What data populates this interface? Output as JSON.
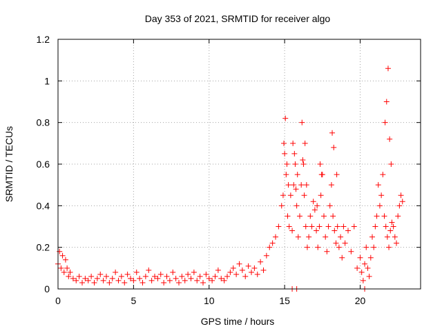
{
  "chart_data": {
    "type": "scatter",
    "title": "Day 353 of 2021, SRMTID for receiver algo",
    "xlabel": "GPS time / hours",
    "ylabel": "SRMTID / TECUs",
    "xlim": [
      0,
      24
    ],
    "ylim": [
      0,
      1.2
    ],
    "xticks": [
      0,
      5,
      10,
      15,
      20
    ],
    "yticks": [
      0,
      0.2,
      0.4,
      0.6,
      0.8,
      1,
      1.2
    ],
    "xtick_labels": [
      "0",
      "5",
      "10",
      "15",
      "20"
    ],
    "ytick_labels": [
      "0",
      "0.2",
      "0.4",
      "0.6",
      "0.8",
      "1",
      "1.2"
    ],
    "grid": true,
    "marker": "+",
    "series": [
      {
        "name": "SRMTID",
        "color": "#ff0000",
        "x": [
          0.0,
          0.1,
          0.2,
          0.3,
          0.4,
          0.5,
          0.6,
          0.7,
          0.8,
          1.0,
          1.2,
          1.4,
          1.6,
          1.8,
          2.0,
          2.2,
          2.4,
          2.6,
          2.8,
          3.0,
          3.2,
          3.4,
          3.6,
          3.8,
          4.0,
          4.2,
          4.4,
          4.6,
          4.8,
          5.0,
          5.2,
          5.4,
          5.6,
          5.8,
          6.0,
          6.2,
          6.4,
          6.6,
          6.8,
          7.0,
          7.2,
          7.4,
          7.6,
          7.8,
          8.0,
          8.2,
          8.4,
          8.6,
          8.8,
          9.0,
          9.2,
          9.4,
          9.6,
          9.8,
          10.0,
          10.2,
          10.4,
          10.6,
          10.8,
          11.0,
          11.2,
          11.4,
          11.6,
          11.8,
          12.0,
          12.2,
          12.4,
          12.6,
          12.8,
          13.0,
          13.2,
          13.4,
          13.6,
          13.8,
          14.0,
          14.2,
          14.4,
          14.6,
          14.8,
          14.9,
          15.0,
          15.1,
          15.2,
          15.3,
          15.4,
          15.5,
          15.6,
          15.7,
          15.8,
          15.9,
          16.0,
          16.1,
          16.2,
          16.3,
          16.4,
          16.5,
          16.6,
          16.7,
          16.8,
          16.9,
          17.0,
          17.1,
          17.2,
          17.3,
          17.4,
          17.5,
          17.6,
          17.7,
          17.8,
          17.9,
          18.0,
          18.1,
          18.2,
          18.3,
          18.4,
          18.5,
          18.6,
          18.7,
          18.8,
          18.9,
          19.0,
          19.2,
          19.4,
          19.6,
          19.8,
          20.0,
          20.1,
          20.2,
          20.3,
          20.4,
          20.5,
          20.6,
          20.7,
          20.8,
          20.9,
          21.0,
          21.1,
          21.2,
          21.3,
          21.4,
          21.5,
          21.6,
          21.7,
          21.8,
          21.9,
          22.0,
          22.1,
          22.2,
          22.3,
          22.4,
          22.5,
          22.6,
          22.7,
          22.8,
          14.95,
          15.05,
          15.15,
          15.25,
          15.55,
          15.65,
          15.75,
          15.85,
          16.15,
          16.25,
          16.35,
          16.45,
          17.15,
          17.35,
          17.45,
          18.15,
          18.25,
          18.45,
          21.65,
          21.75,
          21.85,
          21.95,
          22.05,
          15.5,
          15.8,
          20.3
        ],
        "y": [
          0.12,
          0.18,
          0.1,
          0.16,
          0.08,
          0.14,
          0.1,
          0.06,
          0.08,
          0.05,
          0.04,
          0.06,
          0.03,
          0.05,
          0.04,
          0.06,
          0.03,
          0.05,
          0.07,
          0.04,
          0.06,
          0.03,
          0.05,
          0.08,
          0.04,
          0.06,
          0.03,
          0.07,
          0.05,
          0.04,
          0.08,
          0.05,
          0.03,
          0.06,
          0.09,
          0.04,
          0.06,
          0.05,
          0.07,
          0.03,
          0.06,
          0.04,
          0.08,
          0.05,
          0.03,
          0.06,
          0.04,
          0.07,
          0.05,
          0.08,
          0.04,
          0.06,
          0.03,
          0.07,
          0.05,
          0.04,
          0.06,
          0.09,
          0.05,
          0.04,
          0.06,
          0.08,
          0.1,
          0.07,
          0.12,
          0.09,
          0.06,
          0.11,
          0.08,
          0.1,
          0.07,
          0.13,
          0.09,
          0.16,
          0.2,
          0.22,
          0.25,
          0.3,
          0.4,
          0.45,
          0.65,
          0.55,
          0.35,
          0.3,
          0.45,
          0.28,
          0.5,
          0.6,
          0.4,
          0.25,
          0.35,
          0.5,
          0.62,
          0.45,
          0.3,
          0.2,
          0.25,
          0.35,
          0.3,
          0.42,
          0.38,
          0.28,
          0.2,
          0.3,
          0.45,
          0.55,
          0.35,
          0.25,
          0.18,
          0.3,
          0.4,
          0.5,
          0.35,
          0.28,
          0.22,
          0.3,
          0.2,
          0.25,
          0.15,
          0.3,
          0.22,
          0.28,
          0.18,
          0.3,
          0.1,
          0.15,
          0.08,
          0.04,
          0.12,
          0.2,
          0.1,
          0.06,
          0.15,
          0.25,
          0.2,
          0.3,
          0.35,
          0.5,
          0.4,
          0.45,
          0.55,
          0.35,
          0.3,
          0.25,
          0.2,
          0.28,
          0.32,
          0.3,
          0.25,
          0.22,
          0.35,
          0.4,
          0.45,
          0.42,
          0.7,
          0.82,
          0.6,
          0.5,
          0.7,
          0.65,
          0.48,
          0.55,
          0.8,
          0.6,
          0.7,
          0.5,
          0.4,
          0.6,
          0.55,
          0.75,
          0.68,
          0.55,
          0.8,
          0.9,
          1.06,
          0.72,
          0.6,
          0.0,
          0.0,
          0.0
        ]
      }
    ]
  }
}
